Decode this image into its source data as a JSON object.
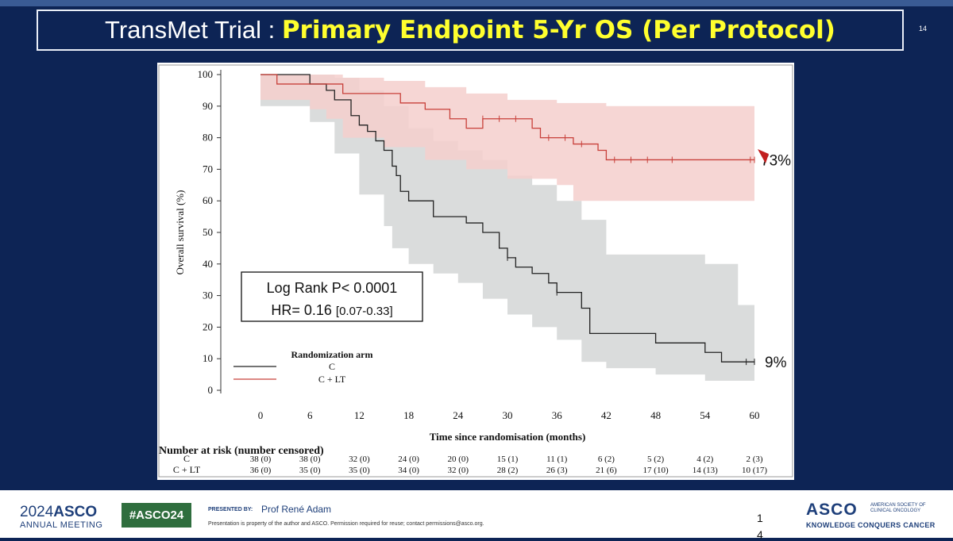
{
  "slide": {
    "title_prefix": "TransMet Trial : ",
    "title_highlight": "Primary Endpoint 5-Yr OS (Per Protocol)",
    "slide_number": "14"
  },
  "stats_box": {
    "line1": "Log Rank P< 0.0001",
    "line2_main": "HR= 0.16 ",
    "line2_ci": "[0.07-0.33]"
  },
  "end_labels": {
    "c_lt": "73%",
    "c": "9%"
  },
  "risk_table": {
    "header": "Number at risk (number censored)",
    "rows": [
      {
        "label": "C",
        "values": [
          "38 (0)",
          "38 (0)",
          "32 (0)",
          "24 (0)",
          "20 (0)",
          "15 (1)",
          "11 (1)",
          "6 (2)",
          "5 (2)",
          "4 (2)",
          "2 (3)"
        ]
      },
      {
        "label": "C + LT",
        "values": [
          "36 (0)",
          "35 (0)",
          "35 (0)",
          "34 (0)",
          "32 (0)",
          "28 (2)",
          "26 (3)",
          "21 (6)",
          "17 (10)",
          "14 (13)",
          "10 (17)"
        ]
      }
    ]
  },
  "footer": {
    "asco_year": "2024",
    "asco_name": "ASCO",
    "annual_meeting": "ANNUAL MEETING",
    "hashtag": "#ASCO24",
    "presented_by": "PRESENTED BY:",
    "presenter": "Prof René Adam",
    "disclaimer": "Presentation is property of the author and ASCO. Permission required for reuse; contact permissions@asco.org.",
    "page_1": "1",
    "page_2": "4",
    "logo": "ASCO",
    "society_1": "AMERICAN SOCIETY OF",
    "society_2": "CLINICAL ONCOLOGY",
    "tagline": "KNOWLEDGE CONQUERS CANCER"
  },
  "chart_data": {
    "type": "line",
    "xlabel": "Time since randomisation (months)",
    "ylabel": "Overall survival (%)",
    "xlim": [
      0,
      60
    ],
    "ylim": [
      0,
      100
    ],
    "x_ticks": [
      0,
      6,
      12,
      18,
      24,
      30,
      36,
      42,
      48,
      54,
      60
    ],
    "y_ticks": [
      0,
      10,
      20,
      30,
      40,
      50,
      60,
      70,
      80,
      90,
      100
    ],
    "legend_title": "Randomization arm",
    "legend_position": "bottom-left",
    "grid": false,
    "series": [
      {
        "name": "C",
        "color": "#222222",
        "band_color": "#d3d6d6",
        "steps": [
          [
            0,
            100
          ],
          [
            6,
            97
          ],
          [
            8,
            95
          ],
          [
            9,
            92
          ],
          [
            11,
            87
          ],
          [
            12,
            84
          ],
          [
            13,
            82
          ],
          [
            14,
            79
          ],
          [
            15,
            76
          ],
          [
            16,
            71
          ],
          [
            16.5,
            68
          ],
          [
            17,
            63
          ],
          [
            18,
            60
          ],
          [
            21,
            55
          ],
          [
            25,
            53
          ],
          [
            27,
            50
          ],
          [
            29,
            45
          ],
          [
            30,
            42
          ],
          [
            31,
            39
          ],
          [
            33,
            37
          ],
          [
            35,
            34
          ],
          [
            36,
            31
          ],
          [
            39,
            26
          ],
          [
            40,
            18
          ],
          [
            48,
            15
          ],
          [
            54,
            12
          ],
          [
            56,
            9
          ],
          [
            60,
            9
          ]
        ],
        "ci_upper": [
          [
            0,
            100
          ],
          [
            6,
            100
          ],
          [
            9,
            99
          ],
          [
            12,
            95
          ],
          [
            15,
            90
          ],
          [
            18,
            83
          ],
          [
            21,
            79
          ],
          [
            24,
            76
          ],
          [
            27,
            73
          ],
          [
            30,
            68
          ],
          [
            33,
            65
          ],
          [
            36,
            60
          ],
          [
            39,
            54
          ],
          [
            42,
            43
          ],
          [
            54,
            40
          ],
          [
            58,
            27
          ],
          [
            60,
            27
          ]
        ],
        "ci_lower": [
          [
            0,
            100
          ],
          [
            6,
            90
          ],
          [
            9,
            85
          ],
          [
            12,
            75
          ],
          [
            15,
            62
          ],
          [
            16,
            52
          ],
          [
            18,
            45
          ],
          [
            21,
            40
          ],
          [
            24,
            37
          ],
          [
            27,
            34
          ],
          [
            30,
            29
          ],
          [
            33,
            24
          ],
          [
            36,
            20
          ],
          [
            39,
            16
          ],
          [
            40,
            9
          ],
          [
            48,
            7
          ],
          [
            54,
            5
          ],
          [
            56,
            3
          ],
          [
            60,
            3
          ]
        ],
        "censor_x": [
          30,
          36,
          59,
          60
        ]
      },
      {
        "name": "C + LT",
        "color": "#c8403a",
        "band_color": "#f5cfcc",
        "steps": [
          [
            0,
            100
          ],
          [
            2,
            97
          ],
          [
            8,
            97
          ],
          [
            10,
            94
          ],
          [
            17,
            91
          ],
          [
            20,
            89
          ],
          [
            23,
            86
          ],
          [
            25,
            83
          ],
          [
            27,
            86
          ],
          [
            33,
            83
          ],
          [
            34,
            80
          ],
          [
            38,
            78
          ],
          [
            41,
            76
          ],
          [
            42,
            73
          ],
          [
            60,
            73
          ]
        ],
        "ci_upper": [
          [
            0,
            100
          ],
          [
            6,
            100
          ],
          [
            8,
            100
          ],
          [
            10,
            99
          ],
          [
            15,
            98
          ],
          [
            20,
            96
          ],
          [
            25,
            94
          ],
          [
            30,
            92
          ],
          [
            36,
            91
          ],
          [
            42,
            90
          ],
          [
            60,
            90
          ]
        ],
        "ci_lower": [
          [
            0,
            100
          ],
          [
            2,
            92
          ],
          [
            8,
            89
          ],
          [
            10,
            86
          ],
          [
            15,
            80
          ],
          [
            20,
            77
          ],
          [
            25,
            73
          ],
          [
            30,
            70
          ],
          [
            34,
            67
          ],
          [
            38,
            65
          ],
          [
            42,
            60
          ],
          [
            60,
            60
          ]
        ],
        "censor_x": [
          27,
          29,
          31,
          35,
          37,
          39,
          43,
          45,
          47,
          50,
          59.5,
          60
        ]
      }
    ]
  }
}
